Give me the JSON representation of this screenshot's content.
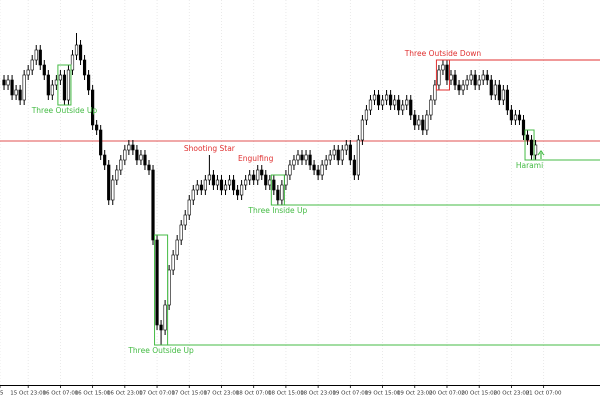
{
  "chart_data": {
    "type": "candlestick",
    "open": [
      305,
      300,
      305,
      290,
      295,
      285,
      310,
      315,
      325,
      335,
      320,
      310,
      290,
      300,
      305,
      310,
      285,
      315,
      330,
      340,
      325,
      310,
      295,
      260,
      255,
      230,
      220,
      185,
      205,
      215,
      225,
      235,
      240,
      235,
      225,
      230,
      220,
      215,
      145,
      60,
      55,
      80,
      115,
      130,
      145,
      160,
      170,
      185,
      195,
      200,
      195,
      205,
      210,
      200,
      205,
      195,
      200,
      205,
      195,
      190,
      200,
      205,
      210,
      205,
      215,
      210,
      200,
      205,
      195,
      185,
      200,
      210,
      220,
      225,
      230,
      225,
      230,
      220,
      215,
      210,
      220,
      225,
      230,
      235,
      225,
      235,
      240,
      225,
      210,
      245,
      265,
      275,
      285,
      290,
      280,
      285,
      290,
      280,
      285,
      275,
      280,
      285,
      270,
      260,
      265,
      255,
      270,
      285,
      300,
      315,
      320,
      305,
      310,
      300,
      295,
      300,
      305,
      310,
      300,
      305,
      310,
      305,
      290,
      300,
      285,
      295,
      275,
      265,
      270,
      265,
      250,
      245,
      230
    ],
    "high": [
      310,
      310,
      310,
      300,
      300,
      315,
      320,
      330,
      340,
      340,
      325,
      315,
      305,
      310,
      315,
      315,
      320,
      335,
      352,
      345,
      330,
      315,
      300,
      265,
      260,
      235,
      225,
      210,
      220,
      230,
      240,
      245,
      245,
      240,
      235,
      235,
      225,
      220,
      150,
      65,
      85,
      120,
      135,
      150,
      165,
      175,
      190,
      200,
      205,
      205,
      210,
      230,
      215,
      210,
      210,
      205,
      210,
      210,
      200,
      205,
      210,
      215,
      215,
      220,
      220,
      215,
      210,
      210,
      200,
      205,
      215,
      225,
      230,
      235,
      235,
      235,
      235,
      225,
      220,
      225,
      230,
      235,
      240,
      240,
      240,
      245,
      245,
      230,
      250,
      270,
      280,
      290,
      295,
      295,
      290,
      295,
      295,
      290,
      290,
      285,
      290,
      290,
      275,
      270,
      270,
      275,
      290,
      305,
      320,
      325,
      325,
      315,
      315,
      305,
      305,
      310,
      315,
      315,
      310,
      315,
      315,
      310,
      305,
      305,
      300,
      300,
      280,
      275,
      275,
      270,
      255,
      250,
      245
    ],
    "low": [
      295,
      295,
      285,
      285,
      280,
      280,
      305,
      310,
      320,
      315,
      305,
      285,
      285,
      295,
      300,
      280,
      280,
      310,
      325,
      320,
      305,
      290,
      255,
      250,
      225,
      215,
      180,
      180,
      200,
      210,
      220,
      230,
      230,
      220,
      220,
      215,
      210,
      140,
      55,
      40,
      50,
      75,
      110,
      125,
      140,
      155,
      165,
      180,
      190,
      190,
      190,
      200,
      195,
      195,
      190,
      190,
      195,
      190,
      185,
      185,
      195,
      200,
      200,
      200,
      205,
      195,
      195,
      190,
      180,
      180,
      195,
      205,
      215,
      220,
      220,
      220,
      215,
      210,
      205,
      205,
      215,
      220,
      225,
      220,
      220,
      230,
      220,
      205,
      205,
      240,
      260,
      270,
      280,
      275,
      275,
      280,
      275,
      275,
      270,
      270,
      275,
      265,
      255,
      255,
      250,
      250,
      265,
      280,
      295,
      310,
      300,
      300,
      295,
      290,
      290,
      295,
      300,
      295,
      295,
      300,
      300,
      285,
      285,
      280,
      280,
      270,
      260,
      260,
      260,
      245,
      240,
      225,
      225
    ],
    "close": [
      300,
      305,
      290,
      295,
      285,
      310,
      315,
      325,
      335,
      320,
      310,
      290,
      300,
      305,
      310,
      285,
      315,
      330,
      340,
      325,
      310,
      295,
      260,
      255,
      230,
      220,
      185,
      205,
      215,
      225,
      235,
      240,
      235,
      225,
      230,
      220,
      215,
      145,
      60,
      55,
      80,
      115,
      130,
      145,
      160,
      170,
      185,
      195,
      200,
      195,
      205,
      210,
      200,
      205,
      195,
      200,
      205,
      195,
      190,
      200,
      205,
      210,
      205,
      215,
      210,
      200,
      205,
      195,
      185,
      200,
      210,
      220,
      225,
      230,
      225,
      230,
      220,
      215,
      210,
      220,
      225,
      230,
      235,
      225,
      235,
      240,
      225,
      210,
      245,
      265,
      275,
      285,
      290,
      280,
      285,
      290,
      280,
      285,
      275,
      280,
      285,
      270,
      260,
      265,
      255,
      270,
      285,
      300,
      315,
      320,
      305,
      310,
      300,
      295,
      300,
      305,
      310,
      300,
      305,
      310,
      305,
      290,
      300,
      285,
      295,
      275,
      265,
      270,
      265,
      250,
      245,
      230,
      240
    ],
    "up_color": "#ffffff",
    "down_color": "#000000",
    "xlim": [
      -1,
      148
    ],
    "ylim": [
      0,
      385
    ],
    "grid": true,
    "xticks": [
      {
        "value": -1,
        "label": "25"
      },
      {
        "value": 6,
        "label": "15 Oct 23:00"
      },
      {
        "value": 14,
        "label": "16 Oct 07:00"
      },
      {
        "value": 22,
        "label": "16 Oct 15:00"
      },
      {
        "value": 30,
        "label": "16 Oct 23:00"
      },
      {
        "value": 38,
        "label": "17 Oct 07:00"
      },
      {
        "value": 46,
        "label": "17 Oct 15:00"
      },
      {
        "value": 54,
        "label": "17 Oct 23:00"
      },
      {
        "value": 62,
        "label": "18 Oct 07:00"
      },
      {
        "value": 70,
        "label": "18 Oct 15:00"
      },
      {
        "value": 78,
        "label": "18 Oct 23:00"
      },
      {
        "value": 86,
        "label": "19 Oct 07:00"
      },
      {
        "value": 94,
        "label": "19 Oct 15:00"
      },
      {
        "value": 102,
        "label": "19 Oct 23:00"
      },
      {
        "value": 110,
        "label": "20 Oct 07:00"
      },
      {
        "value": 118,
        "label": "20 Oct 15:00"
      },
      {
        "value": 126,
        "label": "20 Oct 23:00"
      },
      {
        "value": 134,
        "label": "21 Oct 07:00"
      }
    ],
    "hline": {
      "value": 244,
      "color": "#e05050"
    },
    "patterns": [
      {
        "label": "Three Outside Up",
        "color": "#44bb44",
        "start": 14,
        "end": 16,
        "box": true
      },
      {
        "label": "Three Outside Up",
        "color": "#44bb44",
        "start": 38,
        "end": 40,
        "box": true,
        "level": 40
      },
      {
        "label": "Shooting Star",
        "color": "#e03030",
        "start": 51,
        "end": 51,
        "box": false
      },
      {
        "label": "Engulfing",
        "color": "#e03030",
        "start": 62,
        "end": 63,
        "box": false
      },
      {
        "label": "Three Inside Up",
        "color": "#44bb44",
        "start": 67,
        "end": 69,
        "box": true,
        "level": 180
      },
      {
        "label": "Three Outside Down",
        "color": "#e03030",
        "start": 108,
        "end": 110,
        "box": true,
        "level": 325
      },
      {
        "label": "Harami",
        "color": "#44bb44",
        "start": 130,
        "end": 131,
        "box": true,
        "level": 225
      }
    ]
  }
}
